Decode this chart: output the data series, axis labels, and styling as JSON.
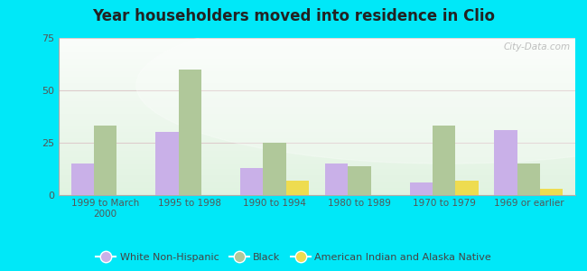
{
  "title": "Year householders moved into residence in Clio",
  "categories": [
    "1999 to March\n2000",
    "1995 to 1998",
    "1990 to 1994",
    "1980 to 1989",
    "1970 to 1979",
    "1969 or earlier"
  ],
  "white_non_hispanic": [
    15,
    30,
    13,
    15,
    6,
    31
  ],
  "black": [
    33,
    60,
    25,
    14,
    33,
    15
  ],
  "american_indian": [
    0,
    0,
    7,
    0,
    7,
    3
  ],
  "color_white": "#c9b0e8",
  "color_black": "#b0c89a",
  "color_indian": "#eedc50",
  "ylim": [
    0,
    75
  ],
  "yticks": [
    0,
    25,
    50,
    75
  ],
  "outer_bg": "#00e8f8",
  "watermark": "City-Data.com",
  "legend_labels": [
    "White Non-Hispanic",
    "Black",
    "American Indian and Alaska Native"
  ]
}
